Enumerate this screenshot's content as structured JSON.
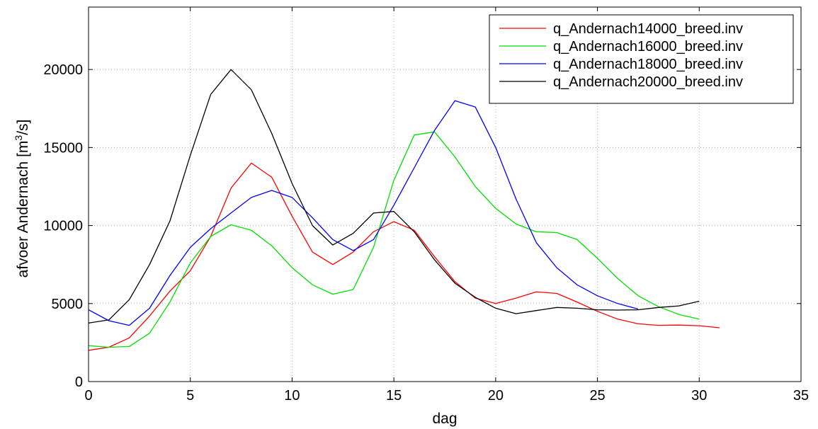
{
  "chart_data": {
    "type": "line",
    "title": "",
    "xlabel": "dag",
    "ylabel_prefix": "afvoer Andernach [m",
    "ylabel_sup": "3",
    "ylabel_suffix": "/s]",
    "xlim": [
      0,
      35
    ],
    "ylim": [
      0,
      24000
    ],
    "xticks": [
      0,
      5,
      10,
      15,
      20,
      25,
      30,
      35
    ],
    "yticks": [
      0,
      5000,
      10000,
      15000,
      20000
    ],
    "xtick_labels": [
      "0",
      "5",
      "10",
      "15",
      "20",
      "25",
      "30",
      "35"
    ],
    "ytick_labels": [
      "0",
      "5000",
      "10000",
      "15000",
      "20000"
    ],
    "grid": true,
    "legend_position": "top-right",
    "series": [
      {
        "name": "q_Andernach14000_breed.inv",
        "color": "#ff0000",
        "x": [
          0,
          1,
          2,
          3,
          4,
          5,
          6,
          7,
          8,
          9,
          10,
          11,
          12,
          13,
          14,
          15,
          16,
          17,
          18,
          19,
          20,
          21,
          22,
          23,
          24,
          25,
          26,
          27,
          28,
          29,
          30,
          31
        ],
        "y": [
          2000,
          2200,
          2800,
          4200,
          5800,
          7100,
          9300,
          12400,
          14000,
          13100,
          10600,
          8300,
          7500,
          8300,
          9600,
          10250,
          9700,
          8000,
          6400,
          5350,
          5000,
          5350,
          5750,
          5650,
          5100,
          4500,
          4000,
          3700,
          3600,
          3620,
          3580,
          3450
        ]
      },
      {
        "name": "q_Andernach16000_breed.inv",
        "color": "#00e000",
        "x": [
          0,
          1,
          2,
          3,
          4,
          5,
          6,
          7,
          8,
          9,
          10,
          11,
          12,
          13,
          14,
          15,
          16,
          17,
          18,
          19,
          20,
          21,
          22,
          23,
          24,
          25,
          26,
          27,
          28,
          29,
          30
        ],
        "y": [
          2300,
          2200,
          2250,
          3100,
          5100,
          7600,
          9300,
          10050,
          9700,
          8700,
          7300,
          6200,
          5600,
          5900,
          8600,
          12900,
          15800,
          16000,
          14400,
          12500,
          11100,
          10100,
          9600,
          9550,
          9100,
          7900,
          6600,
          5500,
          4800,
          4300,
          4000
        ]
      },
      {
        "name": "q_Andernach18000_breed.inv",
        "color": "#0000ff",
        "x": [
          0,
          1,
          2,
          3,
          4,
          5,
          6,
          7,
          8,
          9,
          10,
          11,
          12,
          13,
          14,
          15,
          16,
          17,
          18,
          19,
          20,
          21,
          22,
          23,
          24,
          25,
          26,
          27
        ],
        "y": [
          4600,
          3900,
          3600,
          4700,
          6800,
          8600,
          9800,
          10800,
          11800,
          12250,
          11800,
          10500,
          9100,
          8400,
          9100,
          11300,
          13700,
          16100,
          18000,
          17600,
          15000,
          11700,
          8900,
          7300,
          6200,
          5500,
          5000,
          4650
        ]
      },
      {
        "name": "q_Andernach20000_breed.inv",
        "color": "#000000",
        "x": [
          0,
          1,
          2,
          3,
          4,
          5,
          6,
          7,
          8,
          9,
          10,
          11,
          12,
          13,
          14,
          15,
          16,
          17,
          18,
          19,
          20,
          21,
          22,
          23,
          24,
          25,
          26,
          27,
          28,
          29,
          30
        ],
        "y": [
          3750,
          3950,
          5250,
          7500,
          10300,
          14500,
          18400,
          20000,
          18700,
          15900,
          12700,
          10000,
          8750,
          9500,
          10800,
          10900,
          9600,
          7800,
          6300,
          5400,
          4700,
          4350,
          4550,
          4750,
          4700,
          4600,
          4580,
          4600,
          4750,
          4850,
          5150
        ]
      }
    ]
  }
}
